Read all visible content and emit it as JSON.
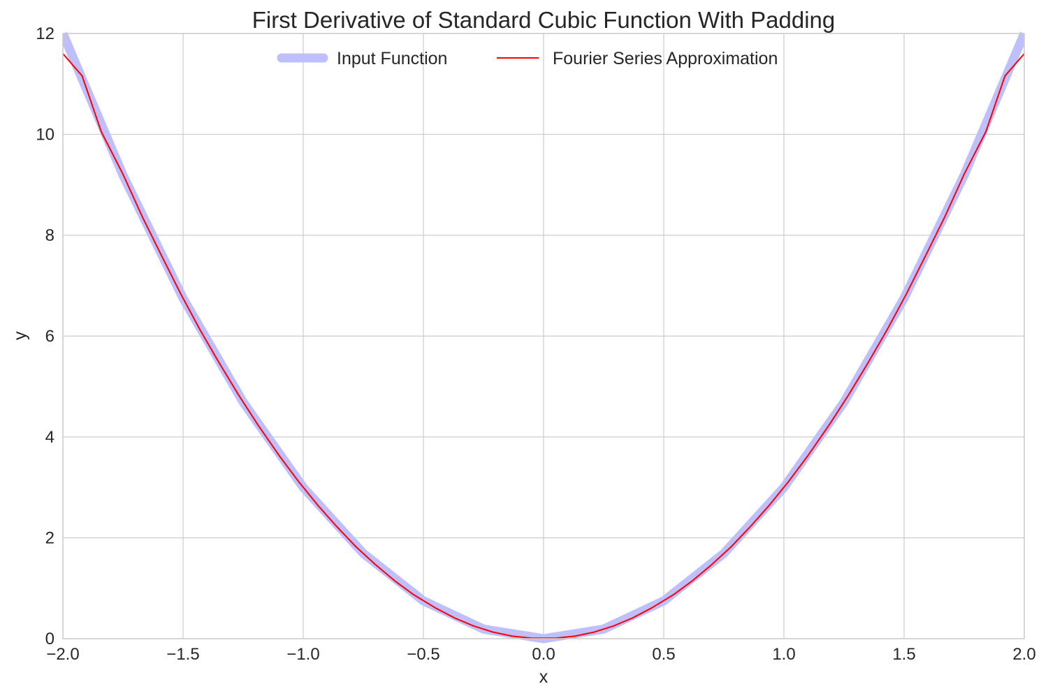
{
  "chart_data": {
    "type": "line",
    "title": "First Derivative of Standard Cubic Function With Padding",
    "xlabel": "x",
    "ylabel": "y",
    "xlim": [
      -2.0,
      2.0
    ],
    "ylim": [
      0,
      12
    ],
    "x_ticks": [
      -2.0,
      -1.5,
      -1.0,
      -0.5,
      0.0,
      0.5,
      1.0,
      1.5,
      2.0
    ],
    "x_tick_labels": [
      "−2.0",
      "−1.5",
      "−1.0",
      "−0.5",
      "0.0",
      "0.5",
      "1.0",
      "1.5",
      "2.0"
    ],
    "y_ticks": [
      0,
      2,
      4,
      6,
      8,
      10,
      12
    ],
    "y_tick_labels": [
      "0",
      "2",
      "4",
      "6",
      "8",
      "10",
      "12"
    ],
    "grid": true,
    "legend_position": "top-center",
    "series": [
      {
        "name": "Input Function",
        "color": "#bfbffb",
        "x": [
          -2.0,
          -1.75,
          -1.5,
          -1.25,
          -1.0,
          -0.75,
          -0.5,
          -0.25,
          0.0,
          0.25,
          0.5,
          0.75,
          1.0,
          1.25,
          1.5,
          1.75,
          2.0
        ],
        "y": [
          12.0,
          9.19,
          6.75,
          4.69,
          3.0,
          1.69,
          0.75,
          0.19,
          0.0,
          0.19,
          0.75,
          1.69,
          3.0,
          4.69,
          6.75,
          9.19,
          12.0
        ]
      },
      {
        "name": "Fourier Series Approximation",
        "color": "#ff0000",
        "x": [
          -2.0,
          -1.92,
          -1.84,
          -1.75,
          -1.67,
          -1.59,
          -1.51,
          -1.43,
          -1.35,
          -1.27,
          -1.19,
          -1.1,
          -1.02,
          -0.94,
          -0.86,
          -0.78,
          -0.7,
          -0.62,
          -0.54,
          -0.45,
          -0.37,
          -0.29,
          -0.21,
          -0.13,
          -0.05,
          0.05,
          0.13,
          0.21,
          0.29,
          0.37,
          0.45,
          0.54,
          0.62,
          0.7,
          0.78,
          0.86,
          0.94,
          1.02,
          1.1,
          1.19,
          1.27,
          1.35,
          1.43,
          1.51,
          1.59,
          1.67,
          1.75,
          1.84,
          1.92,
          2.0
        ],
        "y": [
          11.6,
          11.16,
          10.05,
          9.21,
          8.37,
          7.6,
          6.84,
          6.13,
          5.47,
          4.84,
          4.25,
          3.63,
          3.12,
          2.65,
          2.22,
          1.82,
          1.47,
          1.15,
          0.87,
          0.61,
          0.41,
          0.25,
          0.13,
          0.05,
          0.01,
          0.01,
          0.05,
          0.13,
          0.25,
          0.41,
          0.61,
          0.87,
          1.15,
          1.47,
          1.82,
          2.22,
          2.65,
          3.12,
          3.63,
          4.25,
          4.84,
          5.47,
          6.13,
          6.84,
          7.6,
          8.37,
          9.21,
          10.05,
          11.16,
          11.6
        ]
      }
    ]
  }
}
